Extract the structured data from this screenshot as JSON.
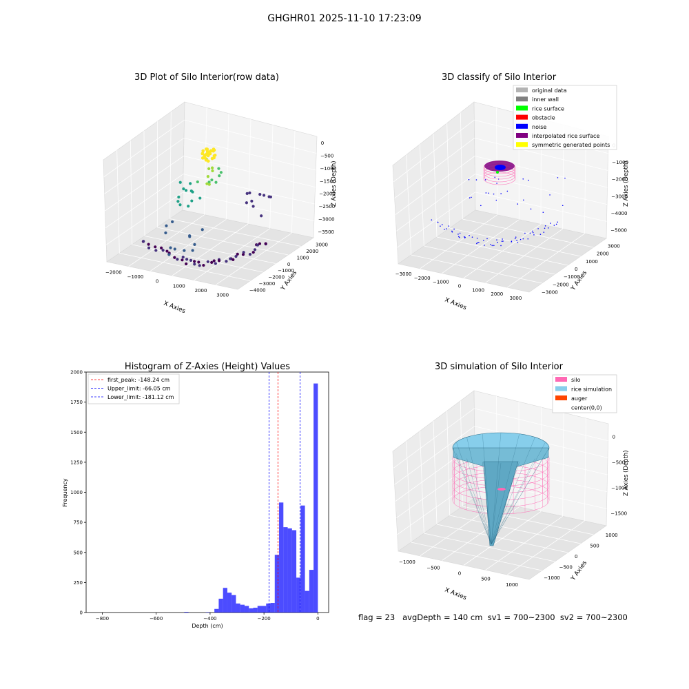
{
  "figure": {
    "suptitle": "GHGHR01 2025-11-10 17:23:09",
    "footer": "flag = 23   avgDepth = 140 cm  sv1 = 700~2300  sv2 = 700~2300"
  },
  "chart_data": [
    {
      "type": "scatter",
      "projection": "3d",
      "title": "3D Plot of Silo Interior(row data)",
      "xlabel": "X Axies",
      "ylabel": "Y Axies",
      "zlabel": "Z Axies (Depth)",
      "x_ticks": [
        "−2000",
        "−1000",
        "0",
        "1000",
        "2000",
        "3000"
      ],
      "y_ticks": [
        "3000",
        "2000",
        "1000",
        "0",
        "−1000",
        "−2000",
        "−3000",
        "−4000"
      ],
      "z_ticks": [
        "0",
        "−500",
        "−1000",
        "−1500",
        "−2000",
        "−2500",
        "−3000",
        "−3500"
      ],
      "colormap": "viridis",
      "grid": true
    },
    {
      "type": "scatter",
      "projection": "3d",
      "title": "3D classify of Silo Interior",
      "xlabel": "X Axies",
      "ylabel": "Y Axies",
      "zlabel": "Z Axies (Depth)",
      "x_ticks": [
        "−3000",
        "−2000",
        "−1000",
        "0",
        "1000",
        "2000",
        "3000"
      ],
      "y_ticks": [
        "3000",
        "2000",
        "1000",
        "0",
        "−1000",
        "−2000",
        "−3000"
      ],
      "z_ticks": [
        "0",
        "−1000",
        "−2000",
        "−3000",
        "−4000",
        "−5000"
      ],
      "legend_position": "top-right",
      "legend": [
        {
          "label": "original data",
          "color": "#b3b3b3"
        },
        {
          "label": "inner wall",
          "color": "#808080"
        },
        {
          "label": "rice surface",
          "color": "#00ff00"
        },
        {
          "label": "obstacle",
          "color": "#ff0000"
        },
        {
          "label": "noise",
          "color": "#0000ff"
        },
        {
          "label": "interpolated rice surface",
          "color": "#800080"
        },
        {
          "label": "symmetric generated points",
          "color": "#ffff00"
        }
      ],
      "grid": true
    },
    {
      "type": "bar",
      "subtype": "histogram",
      "title": "Histogram of Z-Axies (Height) Values",
      "xlabel": "Depth (cm)",
      "ylabel": "Frequency",
      "xlim": [
        -860,
        40
      ],
      "ylim": [
        0,
        2000
      ],
      "x_ticks": [
        "−800",
        "−600",
        "−400",
        "−200",
        "0"
      ],
      "y_ticks": [
        "0",
        "250",
        "500",
        "750",
        "1000",
        "1250",
        "1500",
        "1750",
        "2000"
      ],
      "bar_color": "#0000ff",
      "bins": [
        {
          "start": -496,
          "end": -480,
          "value": 5
        },
        {
          "start": -416,
          "end": -400,
          "value": 3
        },
        {
          "start": -384,
          "end": -368,
          "value": 30
        },
        {
          "start": -368,
          "end": -352,
          "value": 115
        },
        {
          "start": -352,
          "end": -336,
          "value": 205
        },
        {
          "start": -336,
          "end": -320,
          "value": 165
        },
        {
          "start": -320,
          "end": -304,
          "value": 145
        },
        {
          "start": -304,
          "end": -288,
          "value": 75
        },
        {
          "start": -288,
          "end": -272,
          "value": 65
        },
        {
          "start": -272,
          "end": -256,
          "value": 55
        },
        {
          "start": -256,
          "end": -240,
          "value": 35
        },
        {
          "start": -240,
          "end": -224,
          "value": 40
        },
        {
          "start": -224,
          "end": -208,
          "value": 55
        },
        {
          "start": -208,
          "end": -192,
          "value": 55
        },
        {
          "start": -192,
          "end": -176,
          "value": 75
        },
        {
          "start": -176,
          "end": -160,
          "value": 80
        },
        {
          "start": -160,
          "end": -144,
          "value": 480
        },
        {
          "start": -144,
          "end": -128,
          "value": 915
        },
        {
          "start": -128,
          "end": -112,
          "value": 710
        },
        {
          "start": -112,
          "end": -96,
          "value": 700
        },
        {
          "start": -96,
          "end": -80,
          "value": 685
        },
        {
          "start": -80,
          "end": -64,
          "value": 290
        },
        {
          "start": -64,
          "end": -48,
          "value": 890
        },
        {
          "start": -48,
          "end": -32,
          "value": 180
        },
        {
          "start": -32,
          "end": -16,
          "value": 355
        },
        {
          "start": -16,
          "end": 0,
          "value": 1905
        }
      ],
      "vlines": [
        {
          "x": -148.24,
          "color": "#ff0000",
          "label": "first_peak: -148.24 cm"
        },
        {
          "x": -66.05,
          "color": "#0000ff",
          "label": "Upper_limit: -66.05 cm"
        },
        {
          "x": -181.12,
          "color": "#0000ff",
          "label": "Lower_limit: -181.12 cm"
        }
      ],
      "legend_position": "top-left"
    },
    {
      "type": "surface",
      "projection": "3d",
      "title": "3D simulation of Silo Interior",
      "xlabel": "X Axies",
      "ylabel": "Y Axies",
      "zlabel": "Z Axies (Depth)",
      "x_ticks": [
        "−1000",
        "−500",
        "0",
        "500",
        "1000"
      ],
      "y_ticks": [
        "1000",
        "500",
        "0",
        "−500",
        "−1000"
      ],
      "z_ticks": [
        "0",
        "−500",
        "−1000",
        "−1500"
      ],
      "legend_position": "top-right",
      "legend": [
        {
          "label": "silo",
          "color": "#ff69b4"
        },
        {
          "label": "rice simulation",
          "color": "#87ceeb"
        },
        {
          "label": "auger",
          "color": "#ff4500"
        },
        {
          "label": "center(0,0)",
          "color": ""
        }
      ],
      "grid": true
    }
  ]
}
